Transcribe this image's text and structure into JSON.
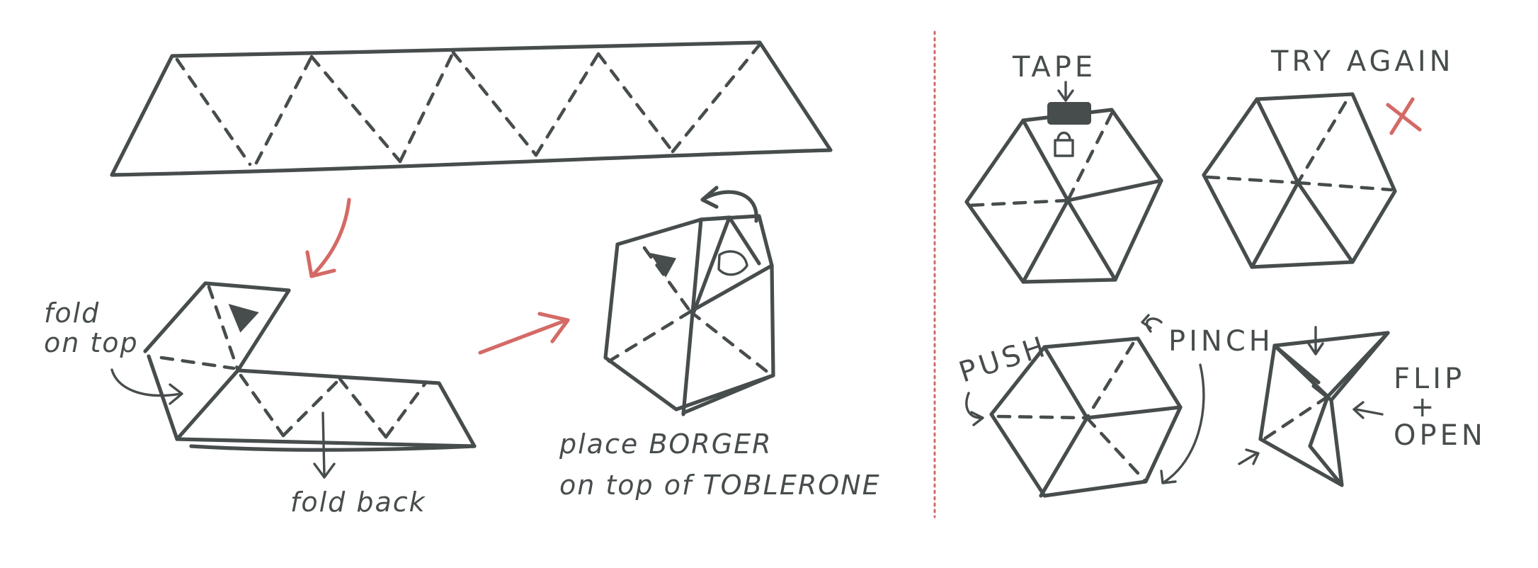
{
  "labels": {
    "fold_on_top_1": "fold",
    "fold_on_top_2": "on top",
    "fold_back": "fold back",
    "place_borger_1": "place BORGER",
    "place_borger_2": "on top of TOBLERONE",
    "tape": "TAPE",
    "try_again": "TRY AGAIN",
    "push": "PUSH",
    "pinch": "PINCH",
    "flip_open_1": "FLIP",
    "flip_open_2": "+",
    "flip_open_3": "OPEN"
  },
  "colors": {
    "ink": "#474c4d",
    "accent": "#d46a66",
    "divider": "#d46a66",
    "background": "#ffffff"
  }
}
